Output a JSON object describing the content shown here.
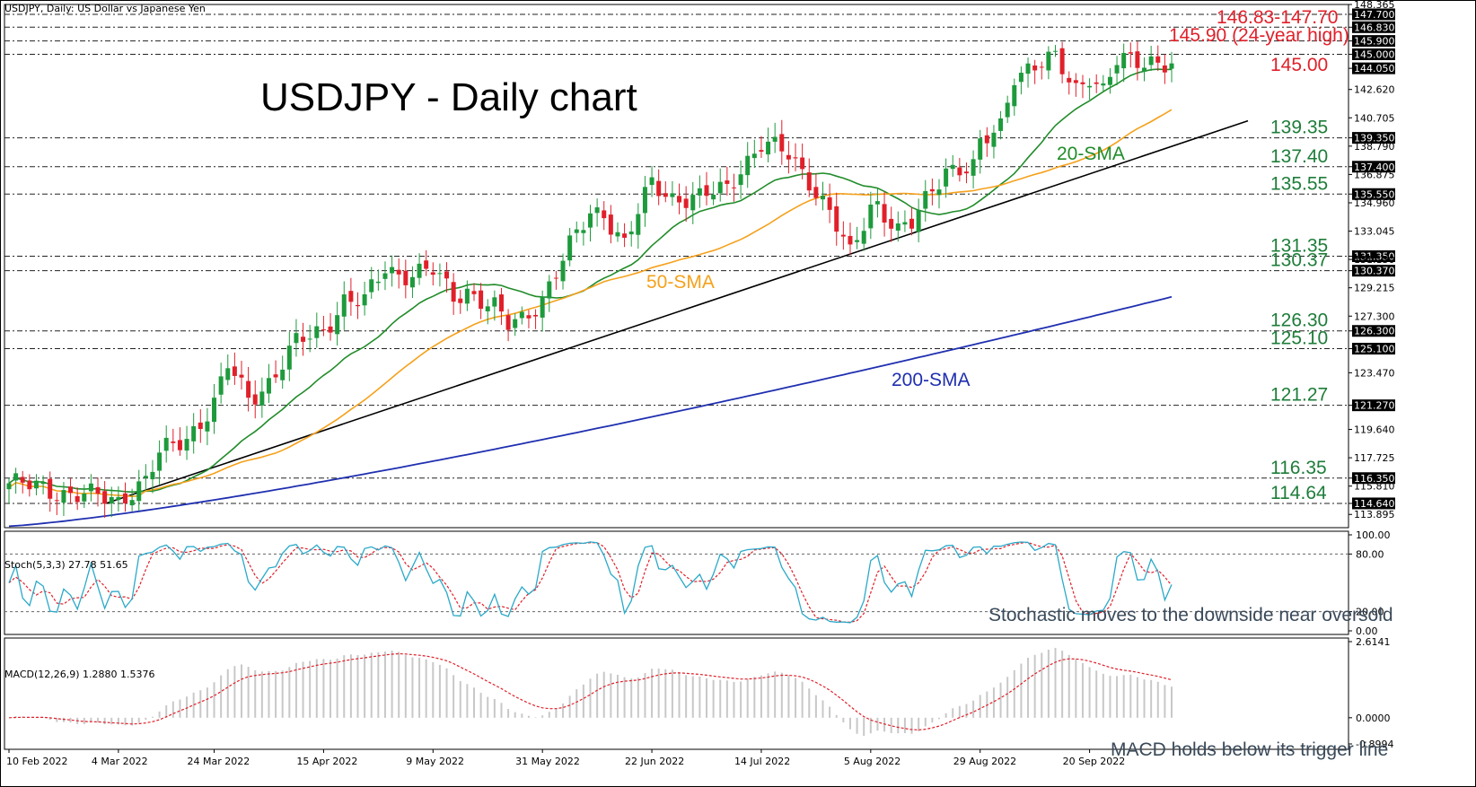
{
  "header": {
    "symbol_line": "USDJPY, Daily:  US Dollar vs Japanese Yen",
    "title": "USDJPY - Daily chart"
  },
  "colors": {
    "up_candle": "#1e9a3c",
    "down_candle": "#e0202a",
    "sma20": "#218c2a",
    "sma50": "#f5a11c",
    "sma200": "#1f2fb0",
    "trendline": "#000000",
    "annotation_green": "#1e7d3a",
    "annotation_red": "#e0202a",
    "stoch_main": "#2aa9c9",
    "stoch_signal": "#e0202a",
    "macd_hist": "#c8c8c8",
    "macd_signal": "#e0202a"
  },
  "chart_data": [
    {
      "type": "candlestick",
      "title": "USDJPY - Daily chart",
      "ylim": [
        113.0,
        148.365
      ],
      "price_axis_ticks": [
        "148.365",
        "147.700",
        "146.830",
        "145.900",
        "145.000",
        "144.050",
        "142.620",
        "140.705",
        "139.350",
        "138.790",
        "137.400",
        "136.875",
        "135.550",
        "134.960",
        "133.045",
        "131.350",
        "131.130",
        "130.370",
        "129.215",
        "127.300",
        "126.300",
        "125.100",
        "123.470",
        "121.270",
        "119.640",
        "117.725",
        "116.350",
        "115.810",
        "114.640",
        "113.895"
      ],
      "x_tick_labels": [
        "10 Feb 2022",
        "4 Mar 2022",
        "24 Mar 2022",
        "15 Apr 2022",
        "9 May 2022",
        "31 May 2022",
        "22 Jun 2022",
        "14 Jul 2022",
        "5 Aug 2022",
        "29 Aug 2022",
        "20 Sep 2022"
      ],
      "close_anchors": [
        [
          "10 Feb 2022",
          116.0
        ],
        [
          "4 Mar 2022",
          114.8
        ],
        [
          "7 Mar 2022",
          115.3
        ],
        [
          "10 Mar 2022",
          116.2
        ],
        [
          "14 Mar 2022",
          117.9
        ],
        [
          "18 Mar 2022",
          119.1
        ],
        [
          "24 Mar 2022",
          121.4
        ],
        [
          "28 Mar 2022",
          123.9
        ],
        [
          "31 Mar 2022",
          121.7
        ],
        [
          "5 Apr 2022",
          122.9
        ],
        [
          "11 Apr 2022",
          125.4
        ],
        [
          "15 Apr 2022",
          126.4
        ],
        [
          "20 Apr 2022",
          128.4
        ],
        [
          "25 Apr 2022",
          128.2
        ],
        [
          "28 Apr 2022",
          130.6
        ],
        [
          "2 May 2022",
          130.2
        ],
        [
          "9 May 2022",
          130.3
        ],
        [
          "12 May 2022",
          128.6
        ],
        [
          "16 May 2022",
          129.1
        ],
        [
          "20 May 2022",
          127.8
        ],
        [
          "24 May 2022",
          126.6
        ],
        [
          "26 May 2022",
          127.1
        ],
        [
          "31 May 2022",
          128.6
        ],
        [
          "6 Jun 2022",
          131.9
        ],
        [
          "9 Jun 2022",
          134.3
        ],
        [
          "13 Jun 2022",
          134.4
        ],
        [
          "16 Jun 2022",
          132.1
        ],
        [
          "22 Jun 2022",
          136.3
        ],
        [
          "27 Jun 2022",
          135.4
        ],
        [
          "1 Jul 2022",
          135.2
        ],
        [
          "7 Jul 2022",
          136.0
        ],
        [
          "11 Jul 2022",
          137.4
        ],
        [
          "14 Jul 2022",
          138.9
        ],
        [
          "20 Jul 2022",
          138.2
        ],
        [
          "25 Jul 2022",
          136.6
        ],
        [
          "28 Jul 2022",
          134.3
        ],
        [
          "2 Aug 2022",
          131.3
        ],
        [
          "5 Aug 2022",
          134.8
        ],
        [
          "8 Aug 2022",
          135.0
        ],
        [
          "11 Aug 2022",
          133.0
        ],
        [
          "15 Aug 2022",
          133.4
        ],
        [
          "18 Aug 2022",
          135.9
        ],
        [
          "22 Aug 2022",
          137.4
        ],
        [
          "26 Aug 2022",
          137.2
        ],
        [
          "29 Aug 2022",
          138.7
        ],
        [
          "1 Sep 2022",
          140.2
        ],
        [
          "5 Sep 2022",
          143.8
        ],
        [
          "8 Sep 2022",
          144.1
        ],
        [
          "13 Sep 2022",
          144.6
        ],
        [
          "16 Sep 2022",
          142.8
        ],
        [
          "20 Sep 2022",
          143.7
        ],
        [
          "22 Sep 2022",
          142.4
        ],
        [
          "26 Sep 2022",
          144.4
        ],
        [
          "29 Sep 2022",
          144.6
        ],
        [
          "3 Oct 2022",
          144.7
        ],
        [
          "6 Oct 2022",
          144.3
        ]
      ],
      "series": [
        {
          "name": "20-SMA"
        },
        {
          "name": "50-SMA"
        },
        {
          "name": "200-SMA"
        }
      ],
      "levels": [
        {
          "label": "146.83-147.70",
          "value": 147.265,
          "color": "red"
        },
        {
          "label": "145.90 (24-year high)",
          "value": 145.9,
          "color": "red"
        },
        {
          "label": "145.00",
          "value": 145.0,
          "color": "red"
        },
        {
          "label": "139.35",
          "value": 139.35,
          "color": "green"
        },
        {
          "label": "137.40",
          "value": 137.4,
          "color": "green"
        },
        {
          "label": "135.55",
          "value": 135.55,
          "color": "green"
        },
        {
          "label": "131.35",
          "value": 131.35,
          "color": "green"
        },
        {
          "label": "130.37",
          "value": 130.37,
          "color": "green"
        },
        {
          "label": "126.30",
          "value": 126.3,
          "color": "green"
        },
        {
          "label": "125.10",
          "value": 125.1,
          "color": "green"
        },
        {
          "label": "121.27",
          "value": 121.27,
          "color": "green"
        },
        {
          "label": "116.35",
          "value": 116.35,
          "color": "green"
        },
        {
          "label": "114.64",
          "value": 114.64,
          "color": "green"
        }
      ],
      "dashed_levels": [
        147.7,
        146.83,
        145.9,
        145.0,
        139.35,
        137.4,
        135.55,
        131.35,
        130.37,
        126.3,
        125.1,
        121.27,
        116.35,
        114.64
      ],
      "highlighted_axis_labels": [
        "147.700",
        "146.830",
        "145.900",
        "145.000",
        "144.050",
        "139.350",
        "137.400",
        "135.550",
        "131.350",
        "130.370",
        "126.300",
        "125.100",
        "121.270",
        "116.350",
        "114.640"
      ]
    },
    {
      "type": "line",
      "title": "Stoch(5,3,3) 27.78 51.65",
      "ylim": [
        0,
        100
      ],
      "axis_ticks": [
        "100.00",
        "80.00",
        "20.00",
        "0.00"
      ],
      "annotation": "Stochastic moves to the downside near oversold"
    },
    {
      "type": "bar",
      "title": "MACD(12,26,9) 1.2880 1.5376",
      "ylim": [
        -0.8994,
        2.6141
      ],
      "axis_ticks": [
        "2.6141",
        "0.0000",
        "-0.8994"
      ],
      "annotation": "MACD holds below its trigger line"
    }
  ]
}
